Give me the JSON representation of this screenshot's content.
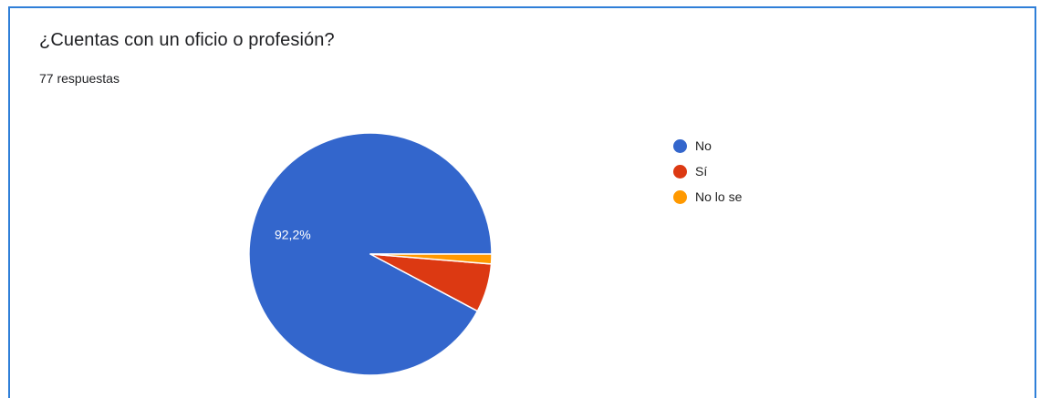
{
  "question": {
    "title": "¿Cuentas con un oficio o profesión?",
    "responses": "77 respuestas"
  },
  "chart_data": {
    "type": "pie",
    "title": "¿Cuentas con un oficio o profesión?",
    "categories": [
      "No",
      "Sí",
      "No lo se"
    ],
    "values": [
      71,
      5,
      1
    ],
    "percent_labels": [
      "92,2%",
      "",
      ""
    ],
    "colors": [
      "#3366cc",
      "#dc3912",
      "#ff9900"
    ],
    "start_angle_deg": 0,
    "direction": "counterclockwise",
    "legend_position": "right"
  }
}
